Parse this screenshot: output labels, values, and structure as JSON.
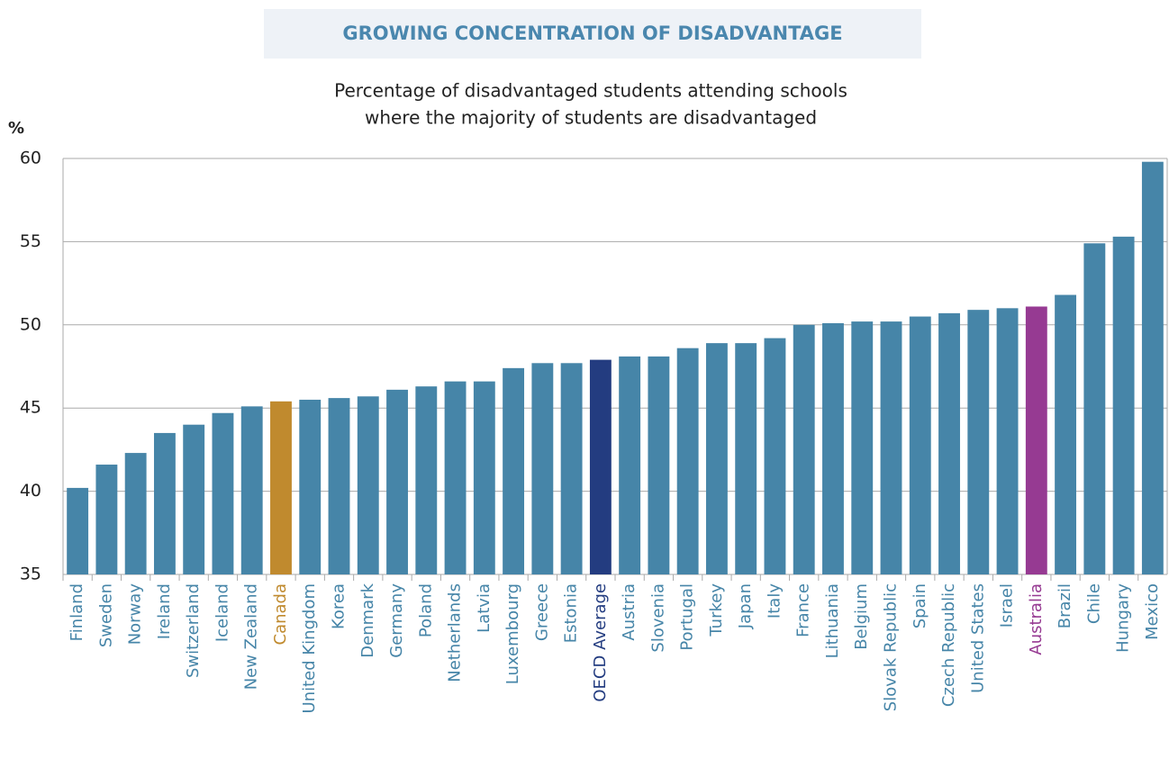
{
  "chart_data": {
    "type": "bar",
    "title": "GROWING CONCENTRATION OF DISADVANTAGE",
    "subtitle": [
      "Percentage of disadvantaged students attending schools",
      "where the majority of students are disadvantaged"
    ],
    "y_label": "%",
    "categories": [
      "Finland",
      "Sweden",
      "Norway",
      "Ireland",
      "Switzerland",
      "Iceland",
      "New Zealand",
      "Canada",
      "United Kingdom",
      "Korea",
      "Denmark",
      "Germany",
      "Poland",
      "Netherlands",
      "Latvia",
      "Luxembourg",
      "Greece",
      "Estonia",
      "OECD Average",
      "Austria",
      "Slovenia",
      "Portugal",
      "Turkey",
      "Japan",
      "Italy",
      "France",
      "Lithuania",
      "Belgium",
      "Slovak Republic",
      "Spain",
      "Czech Republic",
      "United States",
      "Israel",
      "Australia",
      "Brazil",
      "Chile",
      "Hungary",
      "Mexico"
    ],
    "values": [
      40.2,
      41.6,
      42.3,
      43.5,
      44.0,
      44.7,
      45.1,
      45.4,
      45.5,
      45.6,
      45.7,
      46.1,
      46.3,
      46.6,
      46.6,
      47.4,
      47.7,
      47.7,
      47.9,
      48.1,
      48.1,
      48.6,
      48.9,
      48.9,
      49.2,
      50.0,
      50.1,
      50.2,
      50.2,
      50.5,
      50.7,
      50.9,
      51.0,
      51.1,
      51.8,
      54.9,
      55.3,
      59.8
    ],
    "color": "#4685a8",
    "highlight_colors": {
      "Canada": "#c08a2e",
      "OECD Average": "#233c80",
      "Australia": "#963a92"
    },
    "ylim": [
      35,
      60
    ],
    "yticks": [
      35,
      40,
      45,
      50,
      55,
      60
    ],
    "grid": true
  }
}
